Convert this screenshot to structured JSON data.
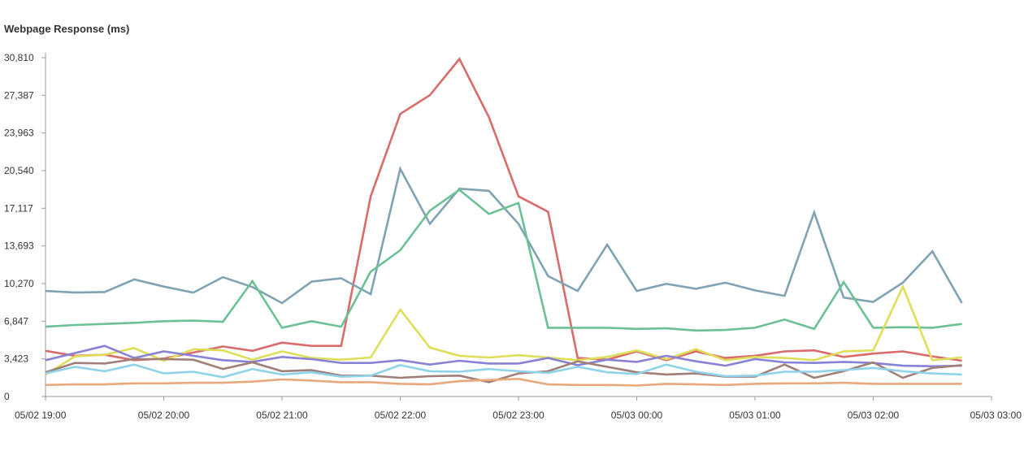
{
  "chart_data": {
    "type": "line",
    "title": "Webpage Response (ms)",
    "xlabel": "",
    "ylabel": "",
    "ylim": [
      0,
      30810
    ],
    "xlim": [
      "05/02 19:00",
      "05/03 03:00"
    ],
    "y_ticks": [
      "0",
      "3,423",
      "6,847",
      "10,270",
      "13,693",
      "17,117",
      "20,540",
      "23,963",
      "27,387",
      "30,810"
    ],
    "x_ticks": [
      "05/02 19:00",
      "05/02 20:00",
      "05/02 21:00",
      "05/02 22:00",
      "05/02 23:00",
      "05/03 00:00",
      "05/03 01:00",
      "05/03 02:00",
      "05/03 03:00"
    ],
    "grid": false,
    "legend": "none",
    "x": [
      "05/02 19:00",
      "05/02 19:15",
      "05/02 19:30",
      "05/02 19:45",
      "05/02 20:00",
      "05/02 20:15",
      "05/02 20:30",
      "05/02 20:45",
      "05/02 21:00",
      "05/02 21:15",
      "05/02 21:30",
      "05/02 21:45",
      "05/02 22:00",
      "05/02 22:15",
      "05/02 22:30",
      "05/02 22:45",
      "05/02 23:00",
      "05/02 23:15",
      "05/02 23:30",
      "05/02 23:45",
      "05/03 00:00",
      "05/03 00:15",
      "05/03 00:30",
      "05/03 00:45",
      "05/03 01:00",
      "05/03 01:15",
      "05/03 01:30",
      "05/03 01:45",
      "05/03 02:00",
      "05/03 02:15",
      "05/03 02:30",
      "05/03 02:45"
    ],
    "series": [
      {
        "color": "#d96b6b",
        "values": [
          4150,
          3700,
          3800,
          3300,
          3450,
          4000,
          4550,
          4150,
          4900,
          4600,
          4600,
          18200,
          25700,
          27400,
          30700,
          25400,
          18200,
          16800,
          3500,
          3350,
          4100,
          3300,
          4100,
          3500,
          3700,
          4100,
          4200,
          3600,
          3900,
          4100,
          3650,
          3250
        ]
      },
      {
        "color": "#7fa3b3",
        "values": [
          9600,
          9450,
          9500,
          10650,
          10000,
          9450,
          10850,
          9950,
          8500,
          10450,
          10750,
          9300,
          20700,
          15700,
          18900,
          18700,
          15700,
          10950,
          9600,
          13800,
          9600,
          10250,
          9800,
          10350,
          9650,
          9150,
          16750,
          9000,
          8600,
          10350,
          13200,
          8500
        ]
      },
      {
        "color": "#6cc095",
        "values": [
          6350,
          6500,
          6600,
          6700,
          6850,
          6900,
          6800,
          10500,
          6250,
          6850,
          6350,
          11350,
          13300,
          16900,
          18800,
          16600,
          17600,
          6250,
          6250,
          6250,
          6150,
          6200,
          6000,
          6050,
          6250,
          7000,
          6150,
          10400,
          6250,
          6300,
          6250,
          6600
        ]
      },
      {
        "color": "#dede5a",
        "values": [
          2000,
          3650,
          3800,
          4400,
          3250,
          4300,
          4200,
          3350,
          4100,
          3500,
          3350,
          3550,
          7900,
          4450,
          3700,
          3550,
          3750,
          3550,
          3300,
          3600,
          4200,
          3400,
          4300,
          3300,
          3600,
          3500,
          3300,
          4100,
          4200,
          10000,
          3300,
          3550
        ]
      },
      {
        "color": "#8882d4",
        "values": [
          3300,
          3950,
          4600,
          3500,
          4100,
          3700,
          3300,
          3150,
          3600,
          3400,
          3050,
          3050,
          3300,
          2900,
          3250,
          3000,
          3000,
          3500,
          2850,
          3350,
          3150,
          3700,
          3200,
          2800,
          3400,
          3100,
          3050,
          3150,
          3050,
          2800,
          2750,
          2800
        ]
      },
      {
        "color": "#a07f78",
        "values": [
          2200,
          3050,
          3000,
          3400,
          3400,
          3350,
          2500,
          3100,
          2300,
          2400,
          1900,
          1900,
          1700,
          1850,
          1900,
          1300,
          2100,
          2300,
          3200,
          2700,
          2200,
          2000,
          2100,
          1800,
          1800,
          2900,
          1700,
          2300,
          3100,
          1700,
          2600,
          2850
        ]
      },
      {
        "color": "#8fd3eb",
        "values": [
          2100,
          2700,
          2300,
          2900,
          2100,
          2250,
          1750,
          2500,
          2000,
          2200,
          1800,
          1900,
          2850,
          2300,
          2250,
          2500,
          2300,
          2150,
          2700,
          2200,
          2050,
          2900,
          2250,
          1850,
          1900,
          2250,
          2250,
          2400,
          2600,
          2300,
          2100,
          2000
        ]
      },
      {
        "color": "#e8a87a",
        "values": [
          1050,
          1100,
          1100,
          1200,
          1200,
          1250,
          1250,
          1350,
          1550,
          1450,
          1300,
          1300,
          1150,
          1100,
          1400,
          1500,
          1600,
          1100,
          1050,
          1050,
          1000,
          1150,
          1100,
          1050,
          1150,
          1200,
          1200,
          1250,
          1150,
          1150,
          1150,
          1150
        ]
      }
    ]
  }
}
